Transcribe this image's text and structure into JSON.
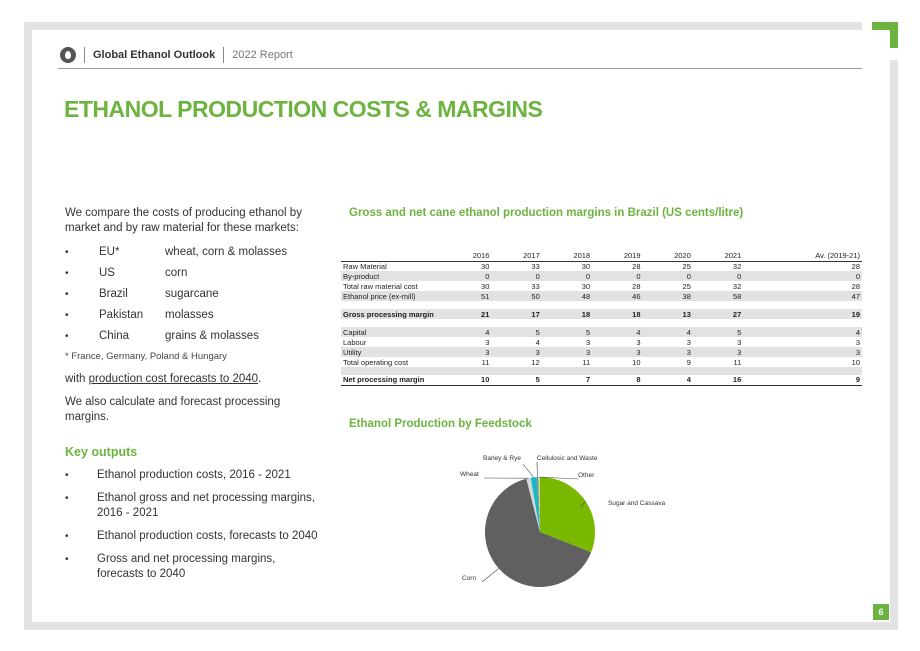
{
  "header": {
    "brand": "Global Ethanol Outlook",
    "report": "2022 Report"
  },
  "title": "ETHANOL PRODUCTION COSTS & MARGINS",
  "intro": "We compare the costs of producing ethanol by market and by raw material for these markets:",
  "markets": [
    {
      "name": "EU*",
      "feedstock": "wheat, corn & molasses"
    },
    {
      "name": "US",
      "feedstock": "corn"
    },
    {
      "name": "Brazil",
      "feedstock": "sugarcane"
    },
    {
      "name": "Pakistan",
      "feedstock": "molasses"
    },
    {
      "name": "China",
      "feedstock": "grains & molasses"
    }
  ],
  "bullet_glyph": "•",
  "footnote": "* France, Germany, Poland & Hungary",
  "forecast_prefix": "with ",
  "forecast_link": "production cost forecasts to 2040",
  "forecast_suffix": ".",
  "also": "We also calculate and forecast processing margins.",
  "key_outputs_title": "Key outputs",
  "key_outputs": [
    "Ethanol production costs, 2016 - 2021",
    "Ethanol gross and net processing margins, 2016 - 2021",
    "Ethanol production costs, forecasts to 2040",
    "Gross and net processing  margins, forecasts to 2040"
  ],
  "table": {
    "title": "Gross and net cane ethanol production margins in Brazil (US cents/litre)",
    "headers": [
      "",
      "2016",
      "2017",
      "2018",
      "2019",
      "2020",
      "2021",
      "Av. (2019-21)"
    ],
    "rows": [
      {
        "cells": [
          "Raw Material",
          "30",
          "33",
          "30",
          "28",
          "25",
          "32",
          "28"
        ],
        "shade": false,
        "bold": false
      },
      {
        "cells": [
          "By-product",
          "0",
          "0",
          "0",
          "0",
          "0",
          "0",
          "0"
        ],
        "shade": true,
        "bold": false
      },
      {
        "cells": [
          "Total raw material cost",
          "30",
          "33",
          "30",
          "28",
          "25",
          "32",
          "28"
        ],
        "shade": false,
        "bold": false
      },
      {
        "cells": [
          "Ethanol price (ex-mill)",
          "51",
          "50",
          "48",
          "46",
          "38",
          "58",
          "47"
        ],
        "shade": true,
        "bold": false
      },
      {
        "spacer": true,
        "shade": false
      },
      {
        "cells": [
          "Gross processing margin",
          "21",
          "17",
          "18",
          "18",
          "13",
          "27",
          "19"
        ],
        "shade": true,
        "bold": true
      },
      {
        "spacer": true,
        "shade": false
      },
      {
        "cells": [
          "Capital",
          "4",
          "5",
          "5",
          "4",
          "4",
          "5",
          "4"
        ],
        "shade": true,
        "bold": false
      },
      {
        "cells": [
          "Labour",
          "3",
          "4",
          "3",
          "3",
          "3",
          "3",
          "3"
        ],
        "shade": false,
        "bold": false
      },
      {
        "cells": [
          "Utility",
          "3",
          "3",
          "3",
          "3",
          "3",
          "3",
          "3"
        ],
        "shade": true,
        "bold": false
      },
      {
        "cells": [
          "Total operating cost",
          "11",
          "12",
          "11",
          "10",
          "9",
          "11",
          "10"
        ],
        "shade": false,
        "bold": false
      },
      {
        "spacer": true,
        "shade": true
      },
      {
        "cells": [
          "Net processing margin",
          "10",
          "5",
          "7",
          "8",
          "4",
          "16",
          "9"
        ],
        "shade": false,
        "bold": true,
        "last": true
      }
    ]
  },
  "chart_data": {
    "type": "pie",
    "title": "Ethanol Production by Feedstock",
    "series": [
      {
        "label": "Sugar and Cassava",
        "value": 31,
        "color": "#7ab800"
      },
      {
        "label": "Corn",
        "value": 65,
        "color": "#606060"
      },
      {
        "label": "Wheat",
        "value": 1.3,
        "color": "#d6d6d6"
      },
      {
        "label": "Barley & Rye",
        "value": 1.7,
        "color": "#17b7c8"
      },
      {
        "label": "Cellulosic  and Waste",
        "value": 0.5,
        "color": "#8a8a8a"
      },
      {
        "label": "Other",
        "value": 0.5,
        "color": "#b9e09a"
      }
    ]
  },
  "page_number": "6"
}
